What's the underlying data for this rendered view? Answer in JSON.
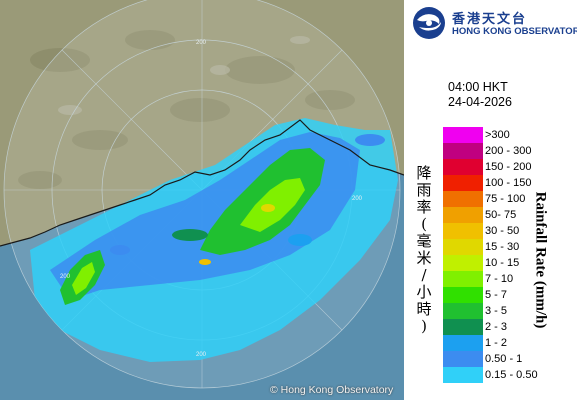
{
  "header": {
    "logo_chinese": "香港天文台",
    "logo_english": "HONG KONG OBSERVATORY"
  },
  "timestamp": {
    "time": "04:00 HKT",
    "date": "24-04-2026"
  },
  "legend": {
    "title_chinese": "降雨率(毫米/小時)",
    "title_english": "Rainfall Rate (mm/h)",
    "items": [
      {
        "label": ">300",
        "color": "#f000f0"
      },
      {
        "label": "200 - 300",
        "color": "#c00080"
      },
      {
        "label": "150 - 200",
        "color": "#e00030"
      },
      {
        "label": "100 - 150",
        "color": "#f02000"
      },
      {
        "label": "75 - 100",
        "color": "#f07000"
      },
      {
        "label": "50- 75",
        "color": "#f0a000"
      },
      {
        "label": "30 - 50",
        "color": "#f0c000"
      },
      {
        "label": "15 - 30",
        "color": "#e0d800"
      },
      {
        "label": "10 - 15",
        "color": "#c0f000"
      },
      {
        "label": "7 - 10",
        "color": "#80f000"
      },
      {
        "label": "5 - 7",
        "color": "#30e000"
      },
      {
        "label": "3 - 5",
        "color": "#20c030"
      },
      {
        "label": "2 - 3",
        "color": "#109050"
      },
      {
        "label": "1 - 2",
        "color": "#1ca0f0"
      },
      {
        "label": "0.50 - 1",
        "color": "#3c8cf0"
      },
      {
        "label": "0.15 - 0.50",
        "color": "#30d0f8"
      }
    ]
  },
  "map": {
    "range_ring_labels": [
      "200",
      "200",
      "200",
      "200"
    ],
    "copyright": "© Hong Kong Observatory",
    "land_color": "#9a9a78",
    "sea_color": "#5a8fae"
  }
}
